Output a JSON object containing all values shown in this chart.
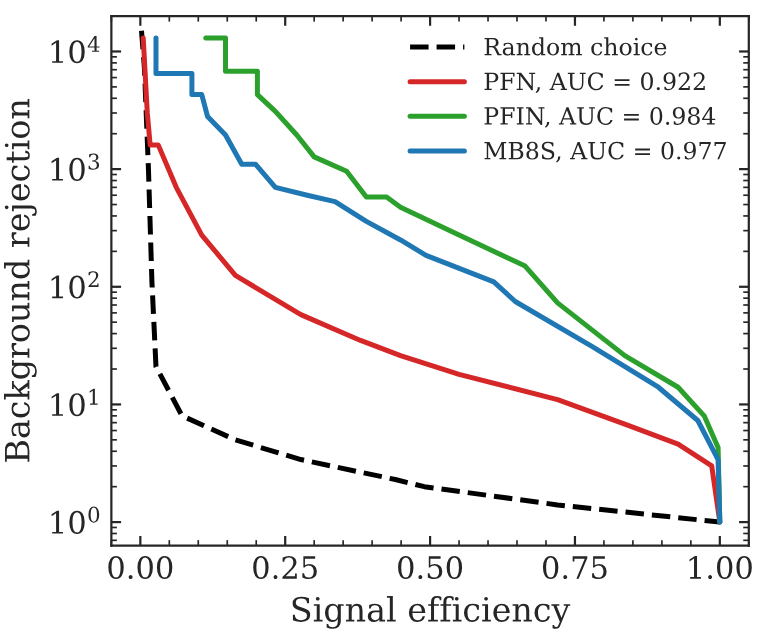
{
  "chart_data": {
    "type": "line",
    "xlabel": "Signal efficiency",
    "ylabel": "Background rejection",
    "log": "y",
    "grid": false,
    "legend": "top right",
    "xlim": [
      -0.05,
      1.05
    ],
    "ylim": [
      0.63,
      20000
    ],
    "xticks": [
      {
        "value": 0,
        "label": "0.00"
      },
      {
        "value": 0.25,
        "label": "0.25"
      },
      {
        "value": 0.5,
        "label": "0.50"
      },
      {
        "value": 0.75,
        "label": "0.75"
      },
      {
        "value": 1,
        "label": "1.00"
      }
    ],
    "yticks": [
      {
        "value": 1,
        "label": "10$^{0}$"
      },
      {
        "value": 10,
        "label": "10$^{1}$"
      },
      {
        "value": 100,
        "label": "10$^{2}$"
      },
      {
        "value": 1000,
        "label": "10$^{3}$"
      },
      {
        "value": 10000,
        "label": "10$^{4}$"
      }
    ],
    "series": [
      {
        "name": "Random choice",
        "color": "#000000",
        "line_style": "dashed",
        "x": [
          0.002,
          0.007,
          0.014,
          0.02,
          0.027,
          0.072,
          0.164,
          0.277,
          0.44,
          0.49,
          0.72,
          1.0
        ],
        "values": [
          15000,
          7300,
          1000,
          110,
          21,
          8,
          5,
          3.4,
          2.3,
          2.0,
          1.4,
          1.0
        ]
      },
      {
        "name": "PFN, AUC = 0.922",
        "color": "#d62728",
        "line_style": "solid",
        "x": [
          0.005,
          0.012,
          0.017,
          0.031,
          0.062,
          0.106,
          0.164,
          0.277,
          0.38,
          0.449,
          0.55,
          0.72,
          0.836,
          0.928,
          0.986,
          1.0
        ],
        "values": [
          13000,
          3000,
          1600,
          1600,
          700,
          275,
          125,
          58,
          35,
          26,
          18,
          11,
          6.8,
          4.6,
          3.0,
          1.0
        ]
      },
      {
        "name": "PFIN, AUC = 0.984",
        "color": "#2ca02c",
        "line_style": "solid",
        "x": [
          0.113,
          0.147,
          0.147,
          0.202,
          0.202,
          0.233,
          0.27,
          0.3,
          0.356,
          0.39,
          0.425,
          0.449,
          0.55,
          0.664,
          0.72,
          0.836,
          0.928,
          0.973,
          0.997,
          1.0
        ],
        "values": [
          13000,
          13000,
          6800,
          6800,
          4300,
          3100,
          1950,
          1270,
          960,
          580,
          580,
          475,
          275,
          150,
          73,
          26,
          14,
          8,
          4.3,
          1.0
        ]
      },
      {
        "name": "MB8S, AUC = 0.977",
        "color": "#1f77b4",
        "line_style": "solid",
        "x": [
          0.027,
          0.027,
          0.089,
          0.089,
          0.106,
          0.116,
          0.147,
          0.175,
          0.199,
          0.233,
          0.288,
          0.336,
          0.39,
          0.449,
          0.493,
          0.61,
          0.647,
          0.78,
          0.894,
          0.962,
          0.997,
          1.0
        ],
        "values": [
          13000,
          6500,
          6500,
          4300,
          4300,
          2800,
          1950,
          1100,
          1100,
          700,
          600,
          530,
          360,
          250,
          185,
          110,
          75,
          31,
          14,
          7.3,
          3.4,
          1.0
        ]
      }
    ]
  }
}
